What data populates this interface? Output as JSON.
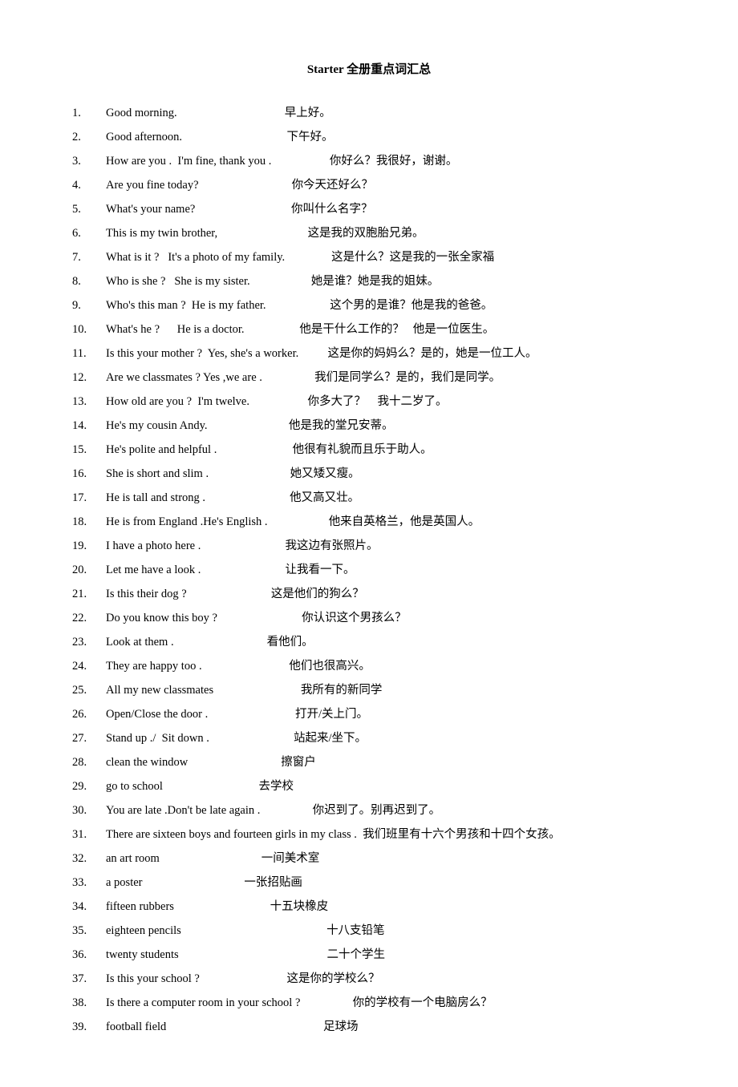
{
  "title": "Starter 全册重点词汇总",
  "text_color": "#000000",
  "background_color": "#ffffff",
  "title_fontsize": 15,
  "body_fontsize": 14.5,
  "line_height": 30,
  "items": [
    {
      "num": "1.",
      "en": "Good morning.",
      "cn": "早上好。",
      "gap": 37
    },
    {
      "num": "2.",
      "en": "Good afternoon.",
      "cn": "下午好。",
      "gap": 36
    },
    {
      "num": "3.",
      "en": "How are you .  I'm fine, thank you .",
      "cn": "你好么？我很好，谢谢。",
      "gap": 20
    },
    {
      "num": "4.",
      "en": "Are you fine today?",
      "cn": "你今天还好么？",
      "gap": 32
    },
    {
      "num": "5.",
      "en": "What's your name?",
      "cn": "你叫什么名字？",
      "gap": 33
    },
    {
      "num": "6.",
      "en": "This is my twin brother,",
      "cn": "这是我的双胞胎兄弟。",
      "gap": 31
    },
    {
      "num": "7.",
      "en": "What is it ?   It's a photo of my family.",
      "cn": "这是什么？这是我的一张全家福",
      "gap": 16
    },
    {
      "num": "8.",
      "en": "Who is she ?   She is my sister.",
      "cn": "她是谁？她是我的姐妹。",
      "gap": 21
    },
    {
      "num": "9.",
      "en": "Who's this man ?  He is my father.",
      "cn": "这个男的是谁？他是我的爸爸。",
      "gap": 22
    },
    {
      "num": "10.",
      "en": "What's he ?      He is a doctor.",
      "cn": "他是干什么工作的？   他是一位医生。",
      "gap": 19
    },
    {
      "num": "11.",
      "en": "Is this your mother ?  Yes, she's a worker.",
      "cn": "这是你的妈妈么？是的，她是一位工人。",
      "gap": 10
    },
    {
      "num": "12.",
      "en": "Are we classmates ? Yes ,we are .",
      "cn": "我们是同学么？是的，我们是同学。",
      "gap": 18
    },
    {
      "num": "13.",
      "en": "How old are you ?  I'm twelve.",
      "cn": "你多大了？    我十二岁了。",
      "gap": 20
    },
    {
      "num": "14.",
      "en": "He's my cousin Andy.",
      "cn": "他是我的堂兄安蒂。",
      "gap": 28
    },
    {
      "num": "15.",
      "en": "He's polite and helpful .",
      "cn": "他很有礼貌而且乐于助人。",
      "gap": 26
    },
    {
      "num": "16.",
      "en": "She is short and slim .",
      "cn": "她又矮又瘦。",
      "gap": 28
    },
    {
      "num": "17.",
      "en": "He is tall and strong .",
      "cn": "他又高又壮。",
      "gap": 29
    },
    {
      "num": "18.",
      "en": "He is from England .He's English .",
      "cn": "他来自英格兰，他是英国人。",
      "gap": 21
    },
    {
      "num": "19.",
      "en": "I have a photo here .",
      "cn": "我这边有张照片。",
      "gap": 29
    },
    {
      "num": "20.",
      "en": "Let me have a look .",
      "cn": "让我看一下。",
      "gap": 29
    },
    {
      "num": "21.",
      "en": "Is this their dog ?",
      "cn": "这是他们的狗么？",
      "gap": 29
    },
    {
      "num": "22.",
      "en": "Do you know this boy ?",
      "cn": "你认识这个男孩么？",
      "gap": 29
    },
    {
      "num": "23.",
      "en": "Look at them .",
      "cn": "看他们。",
      "gap": 32
    },
    {
      "num": "24.",
      "en": "They are happy too .",
      "cn": "他们也很高兴。",
      "gap": 30
    },
    {
      "num": "25.",
      "en": "All my new classmates",
      "cn": "我所有的新同学",
      "gap": 30
    },
    {
      "num": "26.",
      "en": "Open/Close the door .",
      "cn": "打开/关上门。",
      "gap": 30
    },
    {
      "num": "27.",
      "en": "Stand up ./  Sit down .",
      "cn": "站起来/坐下。",
      "gap": 29
    },
    {
      "num": "28.",
      "en": "clean the window",
      "cn": "擦窗户",
      "gap": 32
    },
    {
      "num": "29.",
      "en": "go to school",
      "cn": "去学校",
      "gap": 33
    },
    {
      "num": "30.",
      "en": "You are late .Don't be late again .",
      "cn": "你迟到了。别再迟到了。",
      "gap": 18
    },
    {
      "num": "31.",
      "en": "There are sixteen boys and fourteen girls in my class .",
      "cn": "我们班里有十六个男孩和十四个女孩。",
      "gap": 2
    },
    {
      "num": "32.",
      "en": "an art room",
      "cn": "一间美术室",
      "gap": 35
    },
    {
      "num": "33.",
      "en": "a poster",
      "cn": "一张招贴画",
      "gap": 35
    },
    {
      "num": "34.",
      "en": "fifteen rubbers",
      "cn": "十五块橡皮",
      "gap": 33
    },
    {
      "num": "35.",
      "en": "eighteen pencils",
      "cn": "十八支铅笔",
      "gap": 50
    },
    {
      "num": "36.",
      "en": "twenty students",
      "cn": "二十个学生",
      "gap": 51
    },
    {
      "num": "37.",
      "en": "Is this your school ?",
      "cn": "这是你的学校么？",
      "gap": 30
    },
    {
      "num": "38.",
      "en": "Is there a computer room in your school ?",
      "cn": "你的学校有一个电脑房么？",
      "gap": 18
    },
    {
      "num": "39.",
      "en": "football field",
      "cn": "足球场",
      "gap": 54
    }
  ]
}
